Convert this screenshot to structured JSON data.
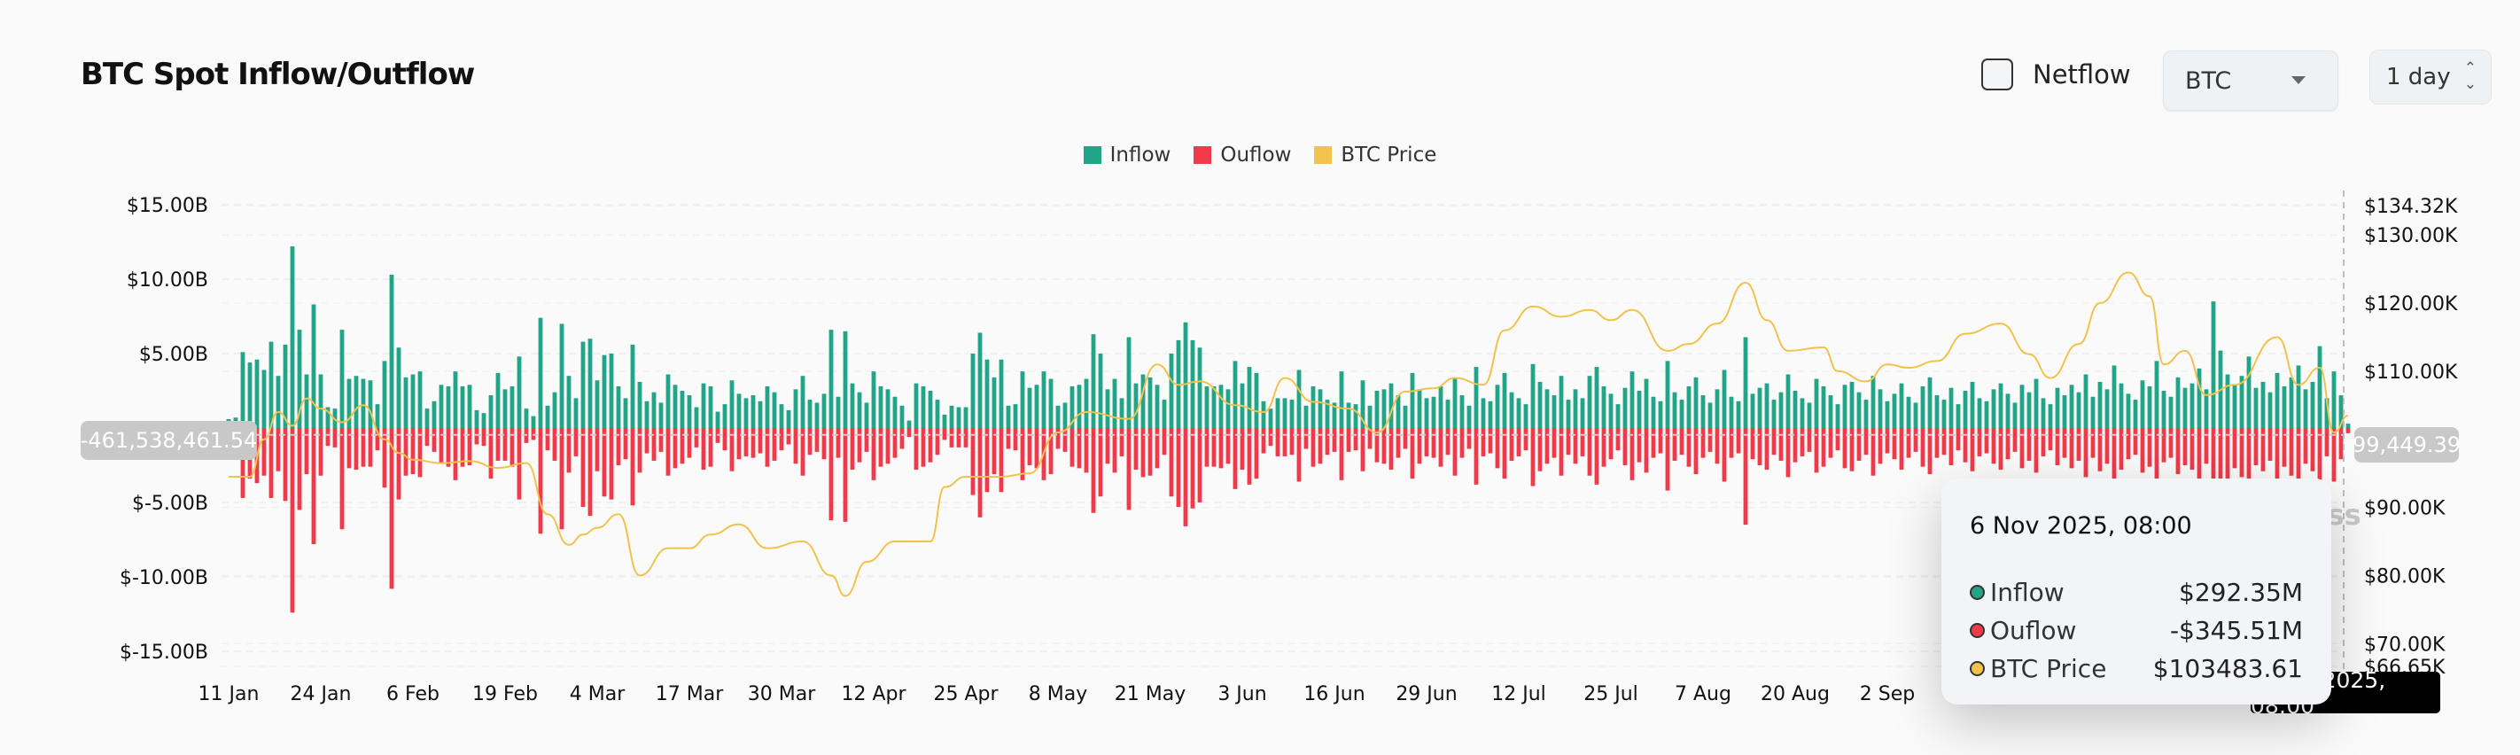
{
  "header": {
    "title": "BTC Spot Inflow/Outflow",
    "netflow_label": "Netflow",
    "netflow_checked": false,
    "asset_select": "BTC",
    "interval_select": "1 day"
  },
  "colors": {
    "inflow": "#21a487",
    "outflow": "#f03a4a",
    "price": "#f2c34c"
  },
  "legend": [
    {
      "label": "Inflow",
      "color": "#21a487"
    },
    {
      "label": "Ouflow",
      "color": "#f03a4a"
    },
    {
      "label": "BTC Price",
      "color": "#f2c34c"
    }
  ],
  "crosshair": {
    "y_left_label": "-461,538,461.54",
    "y_right_label": "99,449.39",
    "x_label": "6 Nov 2025, 08:00"
  },
  "tooltip": {
    "date": "6 Nov 2025, 08:00",
    "rows": [
      {
        "label": "Inflow",
        "value": "$292.35M",
        "color": "#21a487"
      },
      {
        "label": "Ouflow",
        "value": "-$345.51M",
        "color": "#f03a4a"
      },
      {
        "label": "BTC Price",
        "value": "$103483.61",
        "color": "#f2c34c"
      }
    ]
  },
  "watermark": "ass",
  "chart_data": {
    "type": "bar",
    "start_date": "2025-01-11",
    "end_date": "2025-11-06",
    "frequency": "1 day",
    "left_axis": {
      "unit": "USD billions",
      "ylim": [
        -15,
        15
      ],
      "ticks": [
        "$15.00B",
        "$10.00B",
        "$5.00B",
        "$-5.00B",
        "$-10.00B",
        "$-15.00B"
      ]
    },
    "right_axis": {
      "unit": "USD thousands",
      "ylim": [
        66.65,
        134.32
      ],
      "ticks": [
        "$134.32K",
        "$130.00K",
        "$120.00K",
        "$110.00K",
        "$90.00K",
        "$80.00K",
        "$70.00K",
        "$66.65K"
      ]
    },
    "x_ticks": [
      "11 Jan",
      "24 Jan",
      "6 Feb",
      "19 Feb",
      "4 Mar",
      "17 Mar",
      "30 Mar",
      "12 Apr",
      "25 Apr",
      "8 May",
      "21 May",
      "3 Jun",
      "16 Jun",
      "29 Jun",
      "12 Jul",
      "25 Jul",
      "7 Aug",
      "20 Aug",
      "2 Sep"
    ],
    "grid": true,
    "legend_position": "top-center",
    "series": [
      {
        "name": "Inflow",
        "type": "bar",
        "values": [
          0.6,
          0.7,
          5.1,
          4.4,
          4.6,
          3.9,
          5.8,
          3.5,
          5.6,
          12.2,
          6.6,
          3.6,
          8.3,
          3.6,
          1.4,
          1.3,
          6.6,
          3.3,
          3.5,
          3.3,
          3.2,
          1.6,
          4.5,
          10.3,
          5.4,
          3.4,
          3.6,
          3.8,
          1.3,
          1.8,
          2.9,
          2.8,
          3.8,
          2.8,
          2.9,
          1.2,
          1.0,
          2.2,
          3.7,
          2.6,
          2.8,
          4.8,
          1.3,
          0.8,
          7.4,
          1.5,
          2.4,
          7.0,
          3.5,
          2.0,
          5.8,
          6.0,
          3.2,
          4.9,
          5.0,
          2.8,
          2.0,
          5.6,
          3.1,
          1.8,
          2.4,
          1.7,
          3.6,
          2.9,
          2.5,
          2.2,
          1.4,
          3.0,
          2.8,
          1.1,
          1.6,
          3.2,
          2.3,
          2.0,
          2.2,
          1.8,
          2.8,
          2.4,
          1.6,
          1.2,
          2.6,
          3.5,
          1.9,
          1.7,
          2.3,
          6.6,
          2.1,
          6.5,
          3.0,
          2.4,
          1.7,
          3.8,
          2.8,
          2.6,
          2.1,
          1.5,
          0.5,
          3.0,
          2.8,
          2.5,
          1.9,
          0.9,
          1.5,
          1.4,
          1.4,
          5.0,
          6.4,
          4.6,
          3.4,
          4.6,
          1.5,
          1.6,
          3.8,
          2.7,
          2.9,
          3.8,
          3.3,
          1.5,
          1.7,
          2.8,
          2.9,
          3.3,
          6.3,
          5.0,
          2.6,
          3.3,
          2.0,
          6.1,
          3.0,
          3.6,
          3.4,
          2.9,
          1.9,
          5.0,
          5.9,
          7.1,
          5.9,
          5.4,
          2.8,
          2.8,
          2.9,
          2.6,
          4.5,
          3.0,
          4.1,
          3.7,
          1.8,
          1.3,
          2.0,
          2.0,
          1.9,
          3.9,
          1.5,
          2.8,
          2.6,
          1.9,
          1.7,
          3.8,
          1.7,
          1.6,
          3.2,
          1.5,
          2.5,
          2.6,
          3.0,
          2.2,
          1.5,
          3.7,
          2.6,
          2.0,
          2.1,
          2.8,
          1.9,
          3.4,
          2.2,
          1.5,
          4.1,
          2.0,
          1.8,
          2.9,
          3.7,
          2.4,
          2.0,
          1.6,
          4.3,
          3.1,
          2.6,
          2.2,
          3.5,
          1.9,
          2.6,
          2.0,
          3.5,
          4.1,
          2.8,
          2.3,
          1.6,
          2.7,
          3.8,
          2.5,
          3.3,
          2.1,
          1.8,
          4.5,
          2.4,
          1.9,
          2.8,
          3.4,
          2.2,
          1.7,
          2.6,
          3.9,
          2.1,
          1.8,
          6.1,
          2.3,
          2.7,
          3.0,
          1.9,
          2.4,
          3.6,
          2.5,
          2.0,
          1.7,
          3.3,
          2.8,
          2.2,
          1.6,
          2.9,
          3.1,
          2.4,
          1.9,
          3.5,
          2.6,
          1.8,
          2.3,
          3.0,
          2.1,
          1.7,
          2.8,
          3.4,
          2.2,
          1.9,
          2.7,
          1.6,
          2.5,
          3.1,
          2.0,
          1.8,
          2.6,
          3.0,
          2.3,
          1.7,
          2.9,
          2.4,
          3.3,
          2.0,
          1.6,
          2.7,
          2.2,
          2.9,
          2.4,
          3.6,
          2.1,
          3.1,
          2.6,
          4.2,
          3.0,
          2.3,
          1.9,
          3.2,
          2.8,
          4.5,
          2.5,
          2.1,
          3.4,
          2.7,
          3.0,
          4.0,
          2.6,
          8.5,
          5.2,
          3.6,
          2.9,
          3.5,
          4.8,
          2.7,
          3.1,
          2.4,
          3.7,
          2.8,
          3.4,
          4.2,
          2.6,
          3.1,
          5.5,
          2.0,
          3.8,
          2.2,
          0.29
        ]
      },
      {
        "name": "Ouflow",
        "type": "bar",
        "values": [
          -0.3,
          -0.4,
          -4.7,
          -3.4,
          -3.7,
          -3.2,
          -4.7,
          -2.9,
          -4.9,
          -12.4,
          -5.5,
          -3.1,
          -7.8,
          -3.2,
          -1.2,
          -1.3,
          -6.8,
          -2.7,
          -2.8,
          -2.6,
          -2.6,
          -1.5,
          -4.0,
          -10.8,
          -4.8,
          -3.2,
          -3.1,
          -3.3,
          -1.2,
          -1.6,
          -2.4,
          -2.6,
          -3.5,
          -2.6,
          -2.5,
          -1.1,
          -1.2,
          -3.4,
          -2.2,
          -2.2,
          -2.6,
          -4.8,
          -1.0,
          -0.8,
          -7.1,
          -1.5,
          -2.2,
          -6.8,
          -3.0,
          -1.9,
          -5.3,
          -5.9,
          -2.9,
          -4.6,
          -4.8,
          -2.5,
          -2.1,
          -5.2,
          -3.0,
          -1.7,
          -2.2,
          -1.6,
          -3.2,
          -2.7,
          -2.4,
          -2.0,
          -1.3,
          -2.8,
          -2.6,
          -1.0,
          -1.5,
          -2.9,
          -2.1,
          -1.9,
          -2.0,
          -1.7,
          -2.6,
          -2.2,
          -1.5,
          -1.1,
          -2.4,
          -3.2,
          -1.8,
          -1.6,
          -2.1,
          -6.2,
          -2.0,
          -6.3,
          -2.8,
          -2.3,
          -1.6,
          -3.5,
          -2.6,
          -2.4,
          -2.0,
          -1.4,
          -0.6,
          -2.8,
          -2.6,
          -2.3,
          -1.8,
          -0.8,
          -1.3,
          -1.3,
          -1.3,
          -4.5,
          -6.0,
          -4.3,
          -3.1,
          -4.3,
          -1.4,
          -1.5,
          -3.5,
          -2.5,
          -2.7,
          -3.5,
          -3.1,
          -1.4,
          -1.6,
          -2.6,
          -2.7,
          -3.0,
          -5.7,
          -4.6,
          -2.4,
          -3.0,
          -1.9,
          -5.5,
          -2.8,
          -3.3,
          -3.2,
          -2.7,
          -1.8,
          -4.6,
          -5.3,
          -6.6,
          -5.4,
          -5.0,
          -2.6,
          -2.6,
          -2.7,
          -2.4,
          -4.1,
          -2.8,
          -3.8,
          -3.4,
          -1.7,
          -1.2,
          -1.9,
          -1.9,
          -1.8,
          -3.6,
          -1.4,
          -2.6,
          -2.4,
          -1.8,
          -1.6,
          -3.5,
          -1.6,
          -1.5,
          -2.9,
          -1.4,
          -2.3,
          -2.4,
          -2.8,
          -2.0,
          -1.4,
          -3.4,
          -2.4,
          -1.9,
          -2.0,
          -2.6,
          -1.8,
          -3.2,
          -2.0,
          -1.4,
          -3.8,
          -1.9,
          -1.7,
          -2.7,
          -3.4,
          -2.2,
          -1.9,
          -1.5,
          -3.9,
          -2.9,
          -2.4,
          -2.0,
          -3.2,
          -1.8,
          -2.4,
          -1.9,
          -3.2,
          -3.8,
          -2.6,
          -2.1,
          -1.5,
          -2.5,
          -3.5,
          -2.3,
          -3.0,
          -2.0,
          -1.7,
          -4.2,
          -2.2,
          -1.8,
          -2.6,
          -3.1,
          -2.0,
          -1.6,
          -2.4,
          -3.6,
          -2.0,
          -1.7,
          -6.5,
          -2.1,
          -2.5,
          -2.8,
          -1.8,
          -2.2,
          -3.3,
          -2.3,
          -1.9,
          -1.6,
          -3.0,
          -2.6,
          -2.0,
          -1.5,
          -2.7,
          -2.9,
          -2.2,
          -1.8,
          -3.2,
          -2.4,
          -1.7,
          -2.1,
          -2.8,
          -2.0,
          -1.6,
          -2.6,
          -3.1,
          -2.0,
          -1.8,
          -2.5,
          -1.5,
          -2.3,
          -2.9,
          -1.9,
          -1.7,
          -2.4,
          -2.8,
          -2.1,
          -1.6,
          -2.7,
          -2.2,
          -3.0,
          -1.9,
          -1.5,
          -2.5,
          -2.0,
          -2.7,
          -2.2,
          -3.3,
          -2.0,
          -2.9,
          -2.4,
          -3.9,
          -2.8,
          -2.1,
          -1.8,
          -3.0,
          -2.6,
          -4.2,
          -2.3,
          -2.0,
          -3.1,
          -2.5,
          -2.8,
          -3.7,
          -2.4,
          -7.9,
          -4.9,
          -3.4,
          -2.7,
          -3.3,
          -4.5,
          -2.5,
          -2.9,
          -2.2,
          -3.5,
          -2.6,
          -3.2,
          -3.9,
          -2.4,
          -2.9,
          -5.1,
          -1.9,
          -3.6,
          -2.1,
          -0.35
        ]
      },
      {
        "name": "BTC Price",
        "type": "line",
        "axis": "right",
        "points": [
          [
            "2025-01-11",
            94.5
          ],
          [
            "2025-01-14",
            94.5
          ],
          [
            "2025-01-16",
            100
          ],
          [
            "2025-01-18",
            104
          ],
          [
            "2025-01-20",
            102
          ],
          [
            "2025-01-22",
            106
          ],
          [
            "2025-01-24",
            104.5
          ],
          [
            "2025-01-27",
            102.5
          ],
          [
            "2025-01-30",
            105
          ],
          [
            "2025-02-02",
            100
          ],
          [
            "2025-02-04",
            98
          ],
          [
            "2025-02-06",
            97
          ],
          [
            "2025-02-10",
            96.5
          ],
          [
            "2025-02-14",
            96.8
          ],
          [
            "2025-02-18",
            95.8
          ],
          [
            "2025-02-22",
            96.5
          ],
          [
            "2025-02-25",
            89
          ],
          [
            "2025-02-28",
            84.5
          ],
          [
            "2025-03-02",
            86
          ],
          [
            "2025-03-04",
            87
          ],
          [
            "2025-03-07",
            89
          ],
          [
            "2025-03-10",
            80
          ],
          [
            "2025-03-14",
            84
          ],
          [
            "2025-03-17",
            84
          ],
          [
            "2025-03-20",
            86
          ],
          [
            "2025-03-24",
            87.5
          ],
          [
            "2025-03-28",
            84
          ],
          [
            "2025-04-02",
            85
          ],
          [
            "2025-04-06",
            80
          ],
          [
            "2025-04-08",
            77
          ],
          [
            "2025-04-11",
            82
          ],
          [
            "2025-04-15",
            85
          ],
          [
            "2025-04-20",
            85
          ],
          [
            "2025-04-22",
            93
          ],
          [
            "2025-04-25",
            94.5
          ],
          [
            "2025-04-30",
            94.5
          ],
          [
            "2025-05-04",
            95
          ],
          [
            "2025-05-08",
            101
          ],
          [
            "2025-05-12",
            104
          ],
          [
            "2025-05-18",
            103
          ],
          [
            "2025-05-22",
            111
          ],
          [
            "2025-05-25",
            108
          ],
          [
            "2025-05-28",
            108.5
          ],
          [
            "2025-06-02",
            105
          ],
          [
            "2025-06-06",
            104
          ],
          [
            "2025-06-09",
            109
          ],
          [
            "2025-06-13",
            105.5
          ],
          [
            "2025-06-18",
            104.5
          ],
          [
            "2025-06-22",
            101
          ],
          [
            "2025-06-26",
            107
          ],
          [
            "2025-06-30",
            107.5
          ],
          [
            "2025-07-03",
            109
          ],
          [
            "2025-07-07",
            108
          ],
          [
            "2025-07-10",
            116
          ],
          [
            "2025-07-14",
            119.5
          ],
          [
            "2025-07-18",
            118
          ],
          [
            "2025-07-22",
            119
          ],
          [
            "2025-07-25",
            117.5
          ],
          [
            "2025-07-28",
            119
          ],
          [
            "2025-08-02",
            113
          ],
          [
            "2025-08-05",
            114
          ],
          [
            "2025-08-09",
            117
          ],
          [
            "2025-08-13",
            123
          ],
          [
            "2025-08-16",
            117.5
          ],
          [
            "2025-08-19",
            113
          ],
          [
            "2025-08-24",
            113.5
          ],
          [
            "2025-08-26",
            110
          ],
          [
            "2025-08-30",
            108.5
          ],
          [
            "2025-09-02",
            111
          ],
          [
            "2025-09-05",
            110.5
          ],
          [
            "2025-09-09",
            111.5
          ],
          [
            "2025-09-13",
            115.5
          ],
          [
            "2025-09-18",
            117
          ],
          [
            "2025-09-22",
            112.5
          ],
          [
            "2025-09-25",
            109
          ],
          [
            "2025-09-29",
            114
          ],
          [
            "2025-10-02",
            120
          ],
          [
            "2025-10-06",
            124.5
          ],
          [
            "2025-10-09",
            121
          ],
          [
            "2025-10-11",
            111
          ],
          [
            "2025-10-14",
            113
          ],
          [
            "2025-10-17",
            106.5
          ],
          [
            "2025-10-21",
            108
          ],
          [
            "2025-10-27",
            115
          ],
          [
            "2025-10-30",
            108
          ],
          [
            "2025-11-02",
            110.5
          ],
          [
            "2025-11-04",
            101
          ],
          [
            "2025-11-06",
            103.48
          ]
        ]
      }
    ]
  }
}
